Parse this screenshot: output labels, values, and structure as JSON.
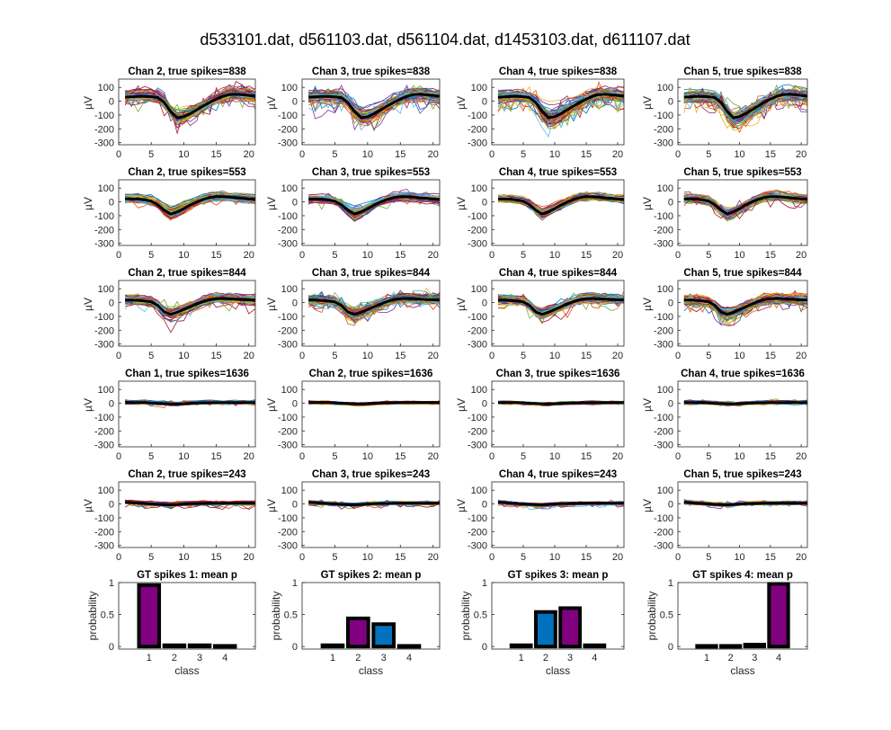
{
  "figure_title": "d533101.dat, d561103.dat, d561104.dat, d1453103.dat, d611107.dat",
  "colors": {
    "trace_palette": [
      "#0072BD",
      "#D95319",
      "#EDB120",
      "#7E2F8E",
      "#77AC30",
      "#4DBEEE",
      "#A2142F"
    ],
    "mean_line": "#000000",
    "bar_top": "#800080",
    "bar_second": "#0072BD",
    "bar_edge": "#000000"
  },
  "chart_data": [
    {
      "type": "line",
      "xlabel": "",
      "ylabel": "µV",
      "xlim": [
        0,
        21
      ],
      "ylim": [
        -315,
        160
      ],
      "xticks": [
        "0",
        "5",
        "10",
        "15",
        "20"
      ],
      "xtick_values": [
        0,
        5,
        10,
        15,
        20
      ],
      "yticks": [
        "100",
        "0",
        "-100",
        "-200",
        "-300"
      ],
      "ytick_values": [
        100,
        0,
        -100,
        -200,
        -300
      ],
      "rows": [
        {
          "titles": [
            "Chan 2, true spikes=838",
            "Chan 3, true spikes=838",
            "Chan 4, true spikes=838",
            "Chan 5, true spikes=838"
          ],
          "mean": [
            30,
            32,
            35,
            35,
            32,
            25,
            -10,
            -75,
            -120,
            -112,
            -90,
            -62,
            -35,
            -8,
            15,
            35,
            48,
            50,
            47,
            42,
            35
          ],
          "spread": 35,
          "outliers": 0.08
        },
        {
          "titles": [
            "Chan 2, true spikes=553",
            "Chan 3, true spikes=553",
            "Chan 4, true spikes=553",
            "Chan 5, true spikes=553"
          ],
          "mean": [
            22,
            22,
            20,
            15,
            5,
            -20,
            -60,
            -88,
            -72,
            -48,
            -22,
            0,
            18,
            32,
            38,
            38,
            35,
            30,
            26,
            22,
            18
          ],
          "spread": 22,
          "outliers": 0.02
        },
        {
          "titles": [
            "Chan 2, true spikes=844",
            "Chan 3, true spikes=844",
            "Chan 4, true spikes=844",
            "Chan 5, true spikes=844"
          ],
          "mean": [
            18,
            18,
            16,
            12,
            5,
            -20,
            -68,
            -85,
            -70,
            -50,
            -30,
            -10,
            8,
            22,
            28,
            30,
            28,
            25,
            22,
            20,
            18
          ],
          "spread": 28,
          "outliers": 0.03
        },
        {
          "titles": [
            "Chan 1, true spikes=1636",
            "Chan 2, true spikes=1636",
            "Chan 3, true spikes=1636",
            "Chan 4, true spikes=1636"
          ],
          "mean": [
            6,
            6,
            5,
            5,
            3,
            0,
            -2,
            -4,
            -5,
            -3,
            0,
            2,
            3,
            4,
            5,
            5,
            5,
            5,
            5,
            5,
            5
          ],
          "spread": 10,
          "outliers": 0.02
        },
        {
          "titles": [
            "Chan 2, true spikes=243",
            "Chan 3, true spikes=243",
            "Chan 4, true spikes=243",
            "Chan 5, true spikes=243"
          ],
          "mean": [
            12,
            10,
            6,
            3,
            0,
            -3,
            -5,
            -6,
            -4,
            0,
            2,
            3,
            4,
            5,
            5,
            5,
            5,
            5,
            5,
            5,
            5
          ],
          "spread": 10,
          "outliers": 0.03
        }
      ]
    },
    {
      "type": "bar",
      "categories": [
        "1",
        "2",
        "3",
        "4"
      ],
      "xlabel": "class",
      "ylabel": "probability",
      "ylim": [
        -0.04,
        1
      ],
      "yticks": [
        "1",
        "0.5",
        "0"
      ],
      "ytick_values": [
        1,
        0.5,
        0
      ],
      "panels": [
        {
          "title": "GT spikes 1: mean p",
          "values": [
            0.96,
            0.02,
            0.02,
            0.01
          ]
        },
        {
          "title": "GT spikes 2: mean p",
          "values": [
            0.02,
            0.44,
            0.35,
            0.01
          ]
        },
        {
          "title": "GT spikes 3: mean p",
          "values": [
            0.02,
            0.54,
            0.6,
            0.02
          ]
        },
        {
          "title": "GT spikes 4: mean p",
          "values": [
            0.01,
            0.01,
            0.03,
            0.98
          ]
        }
      ]
    }
  ]
}
